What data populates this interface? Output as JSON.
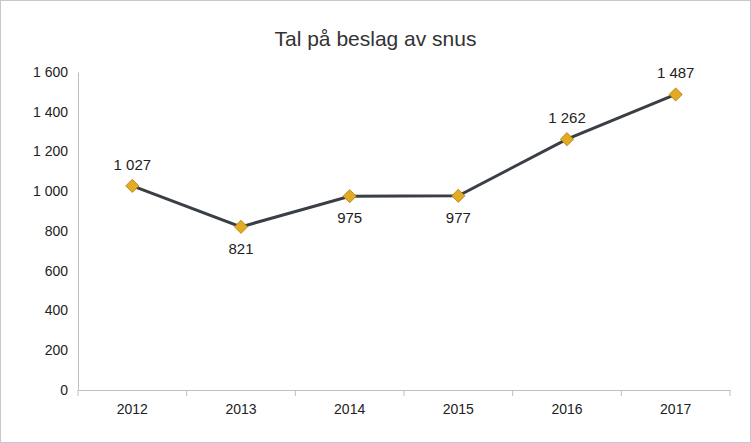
{
  "chart_data": {
    "type": "line",
    "title": "Tal på beslag av snus",
    "categories": [
      "2012",
      "2013",
      "2014",
      "2015",
      "2016",
      "2017"
    ],
    "values": [
      1027,
      821,
      975,
      977,
      1262,
      1487
    ],
    "value_labels": [
      "1 027",
      "821",
      "975",
      "977",
      "1 262",
      "1 487"
    ],
    "color": "#3a3f45",
    "marker": "diamond",
    "data_labels": true,
    "grid": false,
    "ylim": [
      0,
      1600
    ],
    "yticks": [
      0,
      200,
      400,
      600,
      800,
      {
        "value": 1000,
        "label": "1 000"
      },
      {
        "value": 1200,
        "label": "1 200"
      },
      {
        "value": 1400,
        "label": "1 400"
      },
      {
        "value": 1600,
        "label": "1 600"
      }
    ]
  }
}
